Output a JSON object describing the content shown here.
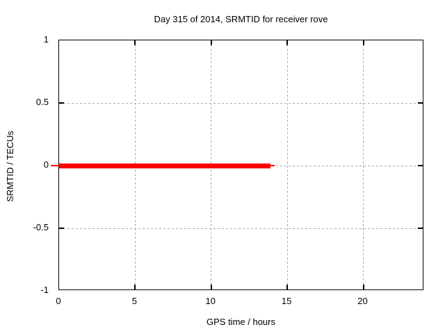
{
  "chart_data": {
    "type": "line",
    "title": "Day 315 of 2014, SRMTID for receiver rove",
    "xlabel": "GPS time / hours",
    "ylabel": "SRMTID / TECUs",
    "xlim": [
      0,
      24
    ],
    "ylim": [
      -1,
      1
    ],
    "xticks": [
      0,
      5,
      10,
      15,
      20
    ],
    "yticks": [
      -1,
      -0.5,
      0,
      0.5,
      1
    ],
    "grid": true,
    "legend": "none",
    "series": [
      {
        "name": "SRMTID",
        "color": "#ff0000",
        "style": "thick horizontal line",
        "y_value": 0,
        "x_start": 0,
        "x_end": 13.9,
        "points": [
          [
            0,
            0
          ],
          [
            13.9,
            0
          ]
        ]
      }
    ],
    "colors": {
      "background": "#ffffff",
      "frame": "#000000",
      "grid": "#a8a8a8",
      "text": "#000000",
      "series": "#ff0000"
    }
  }
}
